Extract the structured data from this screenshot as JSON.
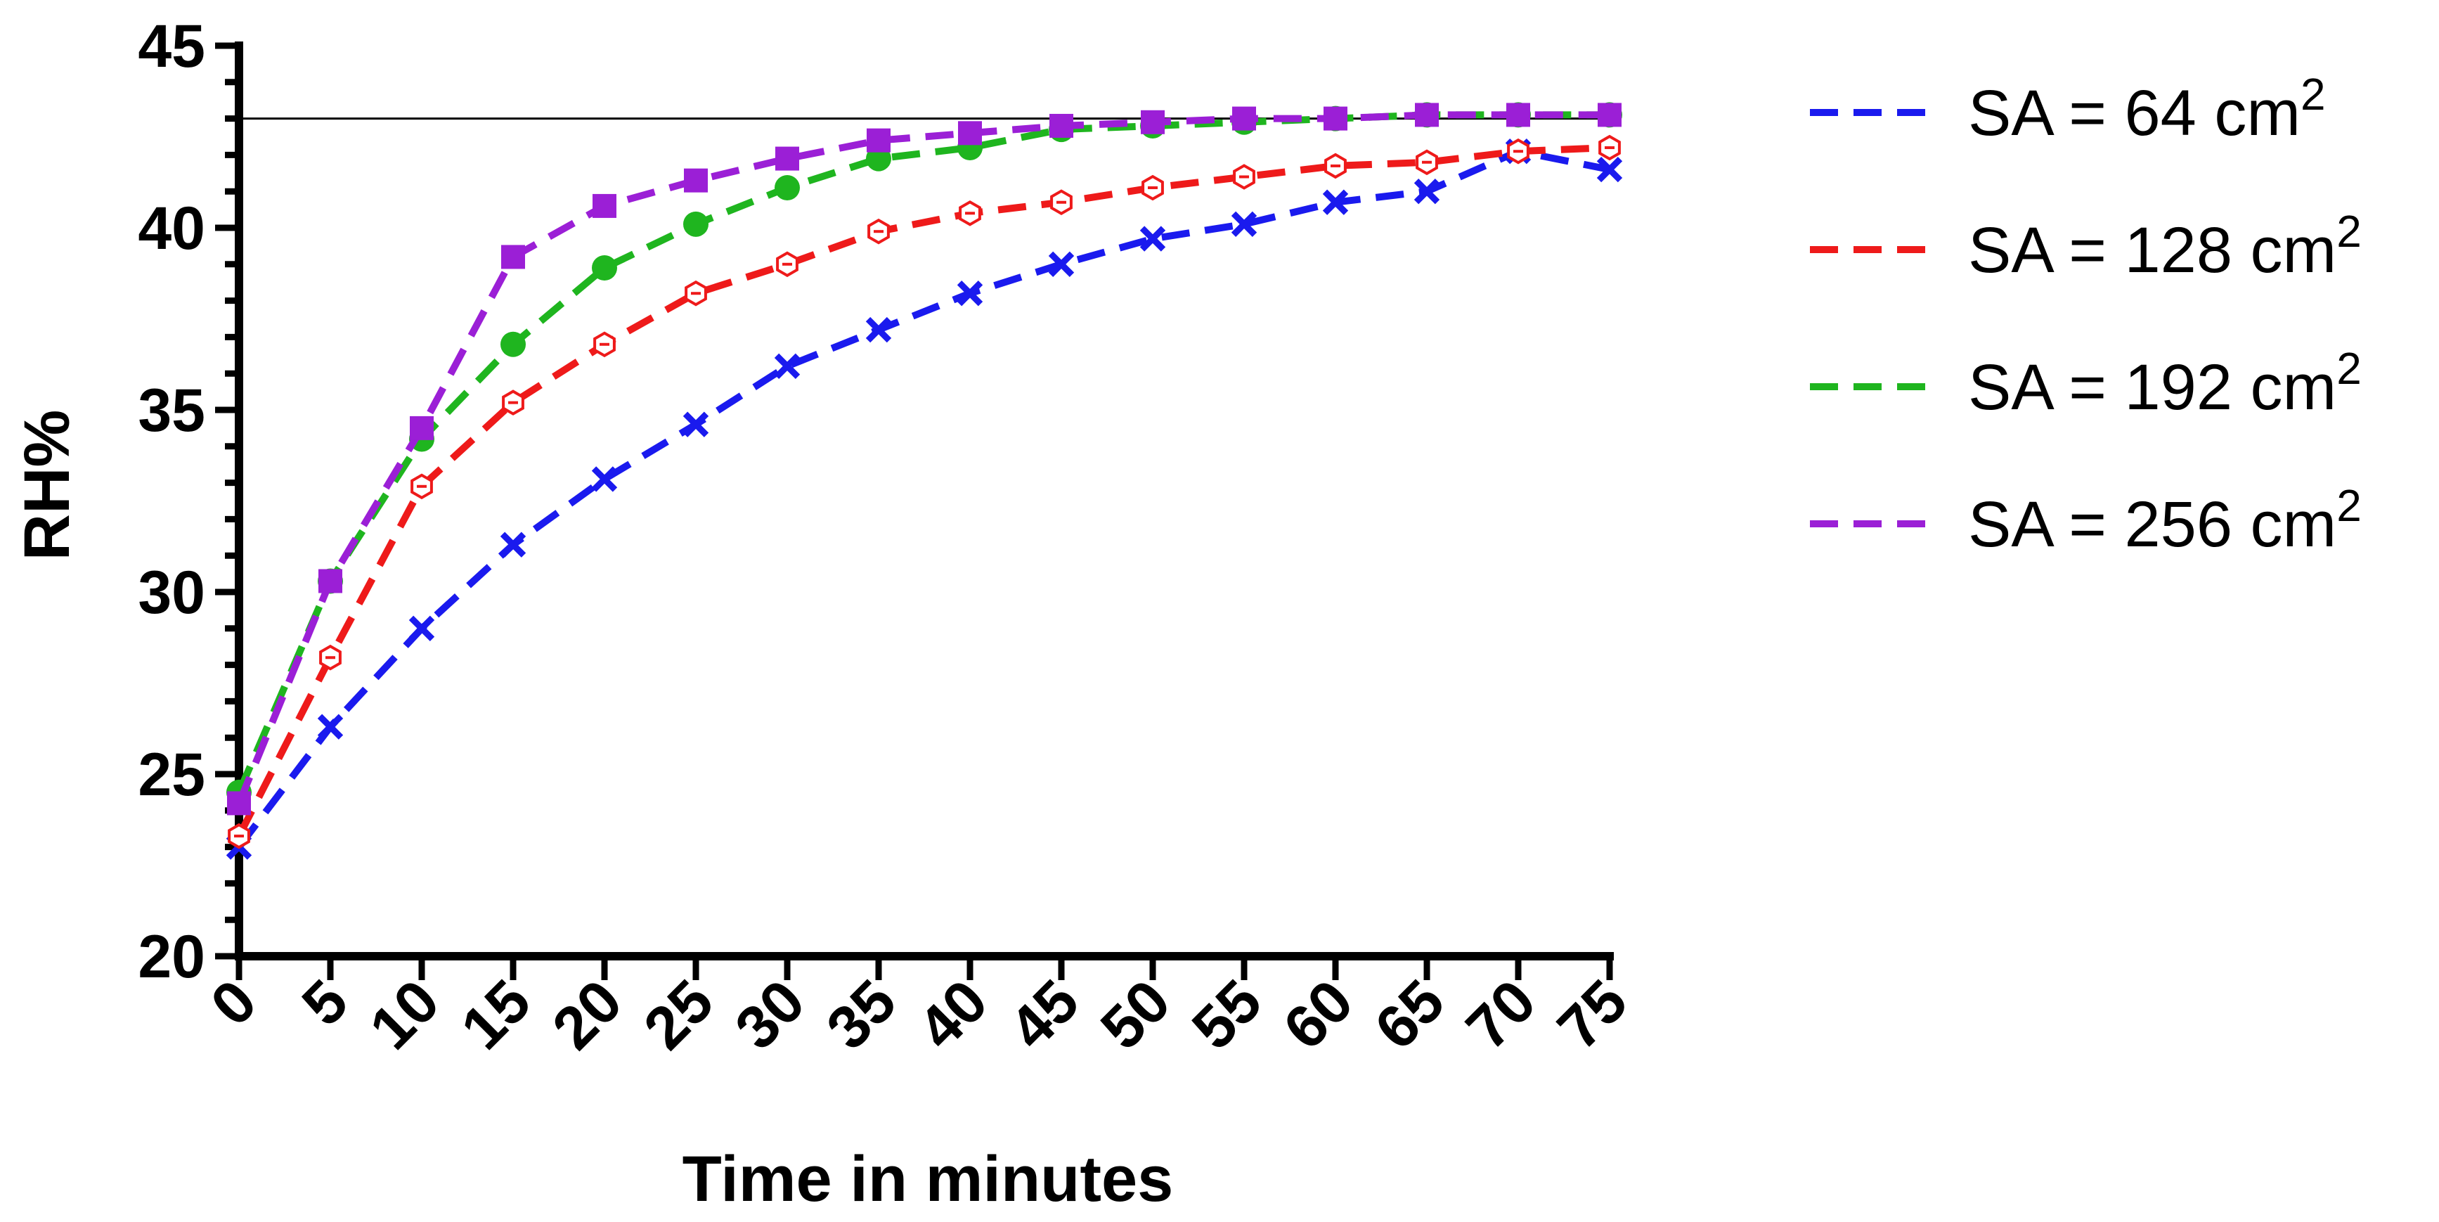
{
  "chart_data": {
    "type": "line",
    "xlabel": "Time in minutes",
    "ylabel": "RH%",
    "xlim": [
      0,
      75
    ],
    "ylim": [
      20,
      45
    ],
    "x_ticks": [
      "0",
      "5",
      "10",
      "15",
      "20",
      "25",
      "30",
      "35",
      "40",
      "45",
      "50",
      "55",
      "60",
      "65",
      "70",
      "75"
    ],
    "y_ticks": [
      "20",
      "25",
      "30",
      "35",
      "40",
      "45"
    ],
    "reference_line": 43,
    "grid": false,
    "legend_position": "right",
    "x": [
      0,
      5,
      10,
      15,
      20,
      25,
      30,
      35,
      40,
      45,
      50,
      55,
      60,
      65,
      70,
      75
    ],
    "series": [
      {
        "name": "SA = 64 cm",
        "superscript": "2",
        "color": "#1a1aee",
        "marker": "x",
        "values": [
          23.0,
          26.3,
          29.0,
          31.3,
          33.1,
          34.6,
          36.2,
          37.2,
          38.2,
          39.0,
          39.7,
          40.1,
          40.7,
          41.0,
          42.1,
          41.6
        ]
      },
      {
        "name": "SA = 128 cm",
        "superscript": "2",
        "color": "#ee1a1a",
        "marker": "hexagon-open",
        "values": [
          23.3,
          28.2,
          32.9,
          35.2,
          36.8,
          38.2,
          39.0,
          39.9,
          40.4,
          40.7,
          41.1,
          41.4,
          41.7,
          41.8,
          42.1,
          42.2
        ]
      },
      {
        "name": "SA = 192 cm",
        "superscript": "2",
        "color": "#1fb51f",
        "marker": "circle",
        "values": [
          24.5,
          30.3,
          34.2,
          36.8,
          38.9,
          40.1,
          41.1,
          41.9,
          42.2,
          42.7,
          42.8,
          42.9,
          43.0,
          43.1,
          43.1,
          43.1
        ]
      },
      {
        "name": "SA = 256 cm",
        "superscript": "2",
        "color": "#9b1fd6",
        "marker": "square",
        "values": [
          24.2,
          30.3,
          34.5,
          39.2,
          40.6,
          41.3,
          41.9,
          42.4,
          42.6,
          42.8,
          42.9,
          43.0,
          43.0,
          43.1,
          43.1,
          43.1
        ]
      }
    ]
  }
}
